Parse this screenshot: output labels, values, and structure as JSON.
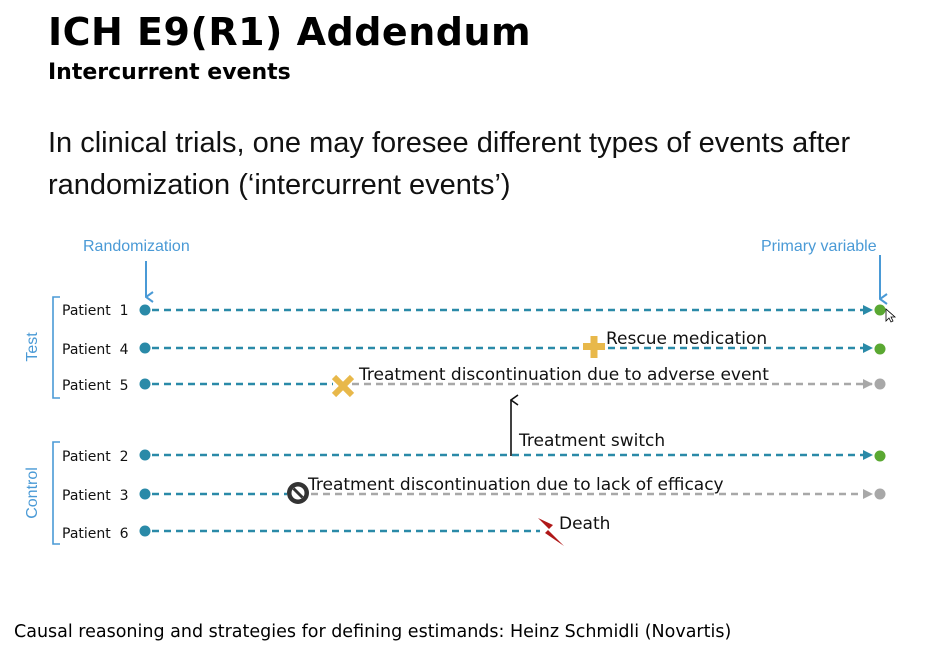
{
  "slide": {
    "title": "ICH E9(R1) Addendum",
    "subtitle": "Intercurrent events",
    "intro": "In clinical trials, one may foresee different types of events after randomization (‘intercurrent events’)",
    "footer": "Causal reasoning and strategies for defining estimands: Heinz Schmidli (Novartis)"
  },
  "diagram": {
    "randomization_label": "Randomization",
    "primary_variable_label": "Primary variable",
    "groups": [
      {
        "label": "Test"
      },
      {
        "label": "Control"
      }
    ],
    "patients": [
      {
        "label": "Patient  1"
      },
      {
        "label": "Patient  4"
      },
      {
        "label": "Patient  5"
      },
      {
        "label": "Patient  2"
      },
      {
        "label": "Patient  3"
      },
      {
        "label": "Patient  6"
      }
    ],
    "events": {
      "rescue": "Rescue medication",
      "discontinuation_adverse": "Treatment discontinuation due to adverse event",
      "switch": "Treatment switch",
      "discontinuation_efficacy": "Treatment discontinuation due to lack of efficacy",
      "death": "Death"
    },
    "colors": {
      "on_treatment": "#2a8aa8",
      "off_treatment": "#a8a8a8",
      "endpoint_observed": "#5aa832",
      "label_blue": "#4a9ad6",
      "rescue": "#e8b84a",
      "adverse": "#e8b84a",
      "lack_of_efficacy": "#333333",
      "death": "#b01818"
    },
    "icons": {
      "rescue": "plus-icon",
      "adverse": "x-icon",
      "lack_of_efficacy": "prohibited-icon",
      "death": "lightning-icon"
    }
  }
}
